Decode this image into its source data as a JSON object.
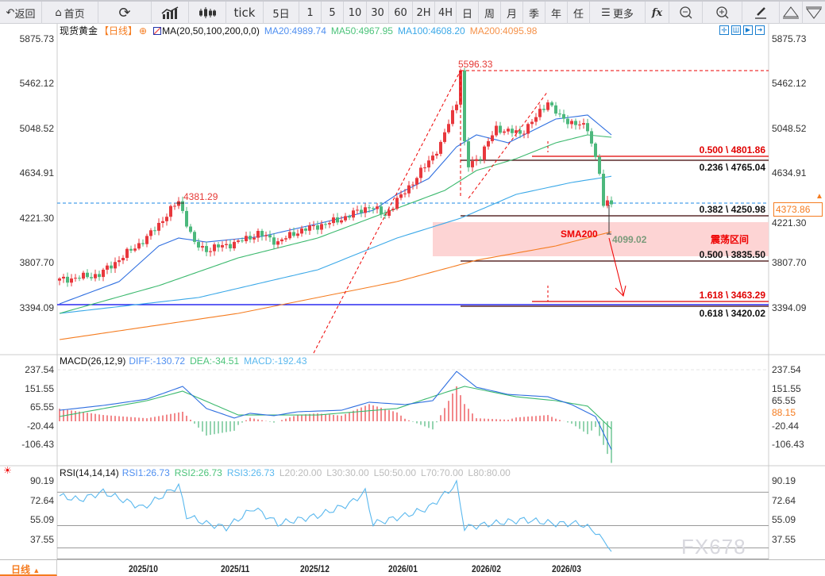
{
  "toolbar": {
    "back": "返回",
    "home": "首页",
    "tick": "tick",
    "d5": "5日",
    "m1": "1",
    "m5": "5",
    "m10": "10",
    "m30": "30",
    "m60": "60",
    "h2": "2H",
    "h4": "4H",
    "day": "日",
    "week": "周",
    "month": "月",
    "quarter": "季",
    "year": "年",
    "custom": "任",
    "more": "更多"
  },
  "legend": {
    "symbol": "现货黄金",
    "period": "【日线】",
    "ma": "MA(20,50,100,200,0,0)",
    "ma20": "MA20:4989.74",
    "ma50": "MA50:4967.95",
    "ma100": "MA100:4608.20",
    "ma200": "MA200:4095.98"
  },
  "price_axis": [
    "5875.73",
    "5462.12",
    "5048.52",
    "4634.91",
    "4221.30",
    "3807.70",
    "3394.09"
  ],
  "current_price": "4373.86",
  "annotations": {
    "high": "5596.33",
    "prev_high": "4381.29",
    "sma200": "SMA200",
    "low": "4099.02",
    "zone": "震荡区间"
  },
  "fib": [
    {
      "label": "0.500 \\ 4801.86",
      "color": "#e00000"
    },
    {
      "label": "0.236 \\ 4765.04",
      "color": "#111"
    },
    {
      "label": "0.382 \\ 4250.98",
      "color": "#111"
    },
    {
      "label": "0.500 \\ 3835.50",
      "color": "#111"
    },
    {
      "label": "1.618 \\ 3463.29",
      "color": "#e00000"
    },
    {
      "label": "0.618 \\ 3420.02",
      "color": "#111"
    }
  ],
  "macd": {
    "title": "MACD(26,12,9)",
    "diff": "DIFF:-130.72",
    "dea": "DEA:-34.51",
    "macd": "MACD:-192.43",
    "axis": [
      "237.54",
      "151.55",
      "65.55",
      "-20.44",
      "-106.43"
    ],
    "current": "88.15"
  },
  "rsi": {
    "title": "RSI(14,14,14)",
    "rsi1": "RSI1:26.73",
    "rsi2": "RSI2:26.73",
    "rsi3": "RSI3:26.73",
    "l20": "L20:20.00",
    "l30": "L30:30.00",
    "l50": "L50:50.00",
    "l70": "L70:70.00",
    "l80": "L80:80.00",
    "axis": [
      "90.19",
      "72.64",
      "55.09",
      "37.55"
    ]
  },
  "dates": [
    "2025/10",
    "2025/11",
    "2025/12",
    "2026/01",
    "2026/02",
    "2026/03"
  ],
  "period_selector": "日线",
  "watermark": "FX678",
  "colors": {
    "up": "#e8383d",
    "down": "#4cb87c",
    "ma20": "#2f6fe0",
    "ma50": "#3cb96e",
    "ma100": "#3aa8e8",
    "ma200": "#f57c20"
  },
  "chart_data": {
    "type": "candlestick",
    "close_keypoints": [
      [
        0,
        3650
      ],
      [
        10,
        3700
      ],
      [
        22,
        4040
      ],
      [
        30,
        4381
      ],
      [
        34,
        3980
      ],
      [
        37,
        3930
      ],
      [
        45,
        4000
      ],
      [
        50,
        4080
      ],
      [
        55,
        4000
      ],
      [
        60,
        4100
      ],
      [
        70,
        4200
      ],
      [
        78,
        4330
      ],
      [
        82,
        4250
      ],
      [
        90,
        4600
      ],
      [
        96,
        4900
      ],
      [
        100,
        5300
      ],
      [
        101,
        5596
      ],
      [
        102,
        4900
      ],
      [
        103,
        4700
      ],
      [
        106,
        4800
      ],
      [
        110,
        5050
      ],
      [
        116,
        5000
      ],
      [
        120,
        5150
      ],
      [
        123,
        5300
      ],
      [
        126,
        5150
      ],
      [
        133,
        5050
      ],
      [
        136,
        4650
      ],
      [
        137,
        4300
      ],
      [
        138,
        4380
      ],
      [
        139,
        4374
      ]
    ],
    "ma20": [
      [
        0,
        3431
      ],
      [
        15,
        3636
      ],
      [
        25,
        3965
      ],
      [
        30,
        4038
      ],
      [
        37,
        4001
      ],
      [
        51,
        4053
      ],
      [
        65,
        4170
      ],
      [
        79,
        4294
      ],
      [
        85,
        4441
      ],
      [
        93,
        4587
      ],
      [
        100,
        4880
      ],
      [
        105,
        4990
      ],
      [
        113,
        4917
      ],
      [
        125,
        5136
      ],
      [
        133,
        5173
      ],
      [
        139,
        4990
      ]
    ],
    "ma50": [
      [
        0,
        3343
      ],
      [
        25,
        3599
      ],
      [
        45,
        3855
      ],
      [
        65,
        4038
      ],
      [
        81,
        4258
      ],
      [
        97,
        4477
      ],
      [
        105,
        4661
      ],
      [
        115,
        4770
      ],
      [
        125,
        4917
      ],
      [
        133,
        4990
      ],
      [
        139,
        4968
      ]
    ],
    "ma100": [
      [
        0,
        3343
      ],
      [
        35,
        3489
      ],
      [
        65,
        3745
      ],
      [
        85,
        4038
      ],
      [
        101,
        4221
      ],
      [
        115,
        4441
      ],
      [
        129,
        4551
      ],
      [
        139,
        4608
      ]
    ],
    "ma200": [
      [
        0,
        3101
      ],
      [
        45,
        3343
      ],
      [
        85,
        3636
      ],
      [
        105,
        3833
      ],
      [
        125,
        3965
      ],
      [
        139,
        4096
      ]
    ],
    "macd_diff": [
      [
        0,
        51
      ],
      [
        11,
        73
      ],
      [
        22,
        102
      ],
      [
        31,
        161
      ],
      [
        37,
        59
      ],
      [
        44,
        15
      ],
      [
        48,
        37
      ],
      [
        54,
        26
      ],
      [
        60,
        44
      ],
      [
        71,
        51
      ],
      [
        78,
        88
      ],
      [
        87,
        77
      ],
      [
        94,
        95
      ],
      [
        100,
        230
      ],
      [
        105,
        157
      ],
      [
        113,
        124
      ],
      [
        123,
        113
      ],
      [
        129,
        77
      ],
      [
        135,
        22
      ],
      [
        139,
        -131
      ]
    ],
    "macd_dea": [
      [
        0,
        22
      ],
      [
        22,
        95
      ],
      [
        31,
        139
      ],
      [
        45,
        29
      ],
      [
        65,
        29
      ],
      [
        85,
        59
      ],
      [
        97,
        132
      ],
      [
        102,
        161
      ],
      [
        115,
        113
      ],
      [
        125,
        95
      ],
      [
        133,
        70
      ],
      [
        139,
        -35
      ]
    ],
    "rsi": [
      [
        0,
        76.7
      ],
      [
        5,
        73.1
      ],
      [
        11,
        80.2
      ],
      [
        21,
        66
      ],
      [
        30,
        85.9
      ],
      [
        32,
        58.9
      ],
      [
        37,
        51.8
      ],
      [
        42,
        48.2
      ],
      [
        49,
        66
      ],
      [
        55,
        51.8
      ],
      [
        65,
        58.9
      ],
      [
        73,
        69.6
      ],
      [
        77,
        80.2
      ],
      [
        79,
        51.8
      ],
      [
        87,
        58.9
      ],
      [
        93,
        66
      ],
      [
        100,
        87.3
      ],
      [
        102,
        48.2
      ],
      [
        109,
        51.8
      ],
      [
        117,
        55.3
      ],
      [
        125,
        51.8
      ],
      [
        131,
        51.8
      ],
      [
        135,
        44.7
      ],
      [
        139,
        26.73
      ]
    ],
    "price_range": [
      3394.09,
      5875.73
    ],
    "macd_range": [
      -106.43,
      237.54
    ]
  }
}
